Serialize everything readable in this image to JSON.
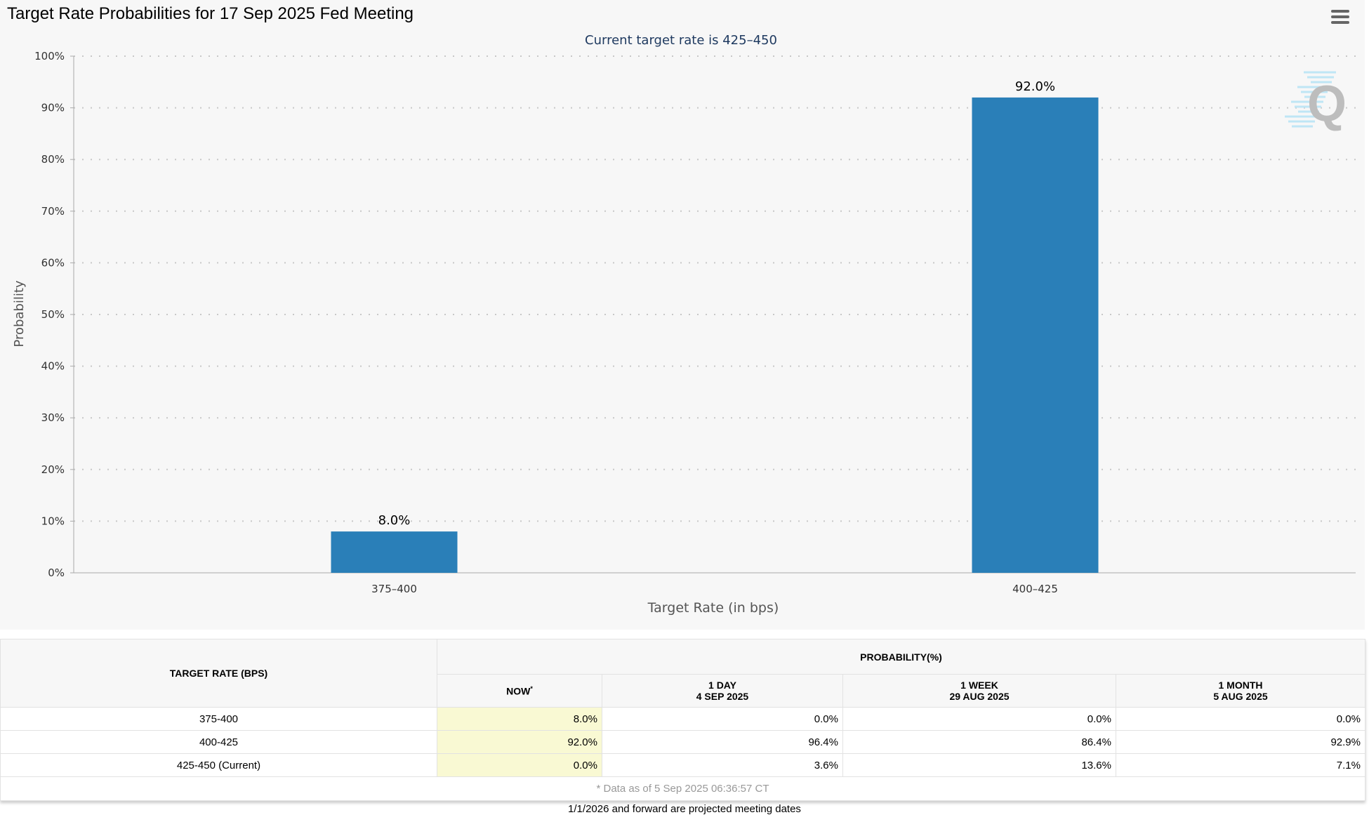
{
  "title": "Target Rate Probabilities for 17 Sep 2025 Fed Meeting",
  "menu_icon": "hamburger-menu-icon",
  "colors": {
    "bar": "#2a7fb8",
    "now_column": "#f9f9d3",
    "background": "#f7f7f7"
  },
  "chart_data": {
    "type": "bar",
    "subtitle": "Current target rate is 425–450",
    "categories": [
      "375–400",
      "400–425"
    ],
    "values": [
      8.0,
      92.0
    ],
    "data_labels": [
      "8.0%",
      "92.0%"
    ],
    "xlabel": "Target Rate (in bps)",
    "ylabel": "Probability",
    "ylim": [
      0,
      100
    ],
    "yticks": [
      "0%",
      "10%",
      "20%",
      "30%",
      "40%",
      "50%",
      "60%",
      "70%",
      "80%",
      "90%",
      "100%"
    ],
    "grid": true,
    "legend": "none"
  },
  "table": {
    "col_header": "TARGET RATE (BPS)",
    "group_header": "PROBABILITY(%)",
    "columns": [
      {
        "line1": "NOW",
        "line2": ""
      },
      {
        "line1": "1 DAY",
        "line2": "4 SEP 2025"
      },
      {
        "line1": "1 WEEK",
        "line2": "29 AUG 2025"
      },
      {
        "line1": "1 MONTH",
        "line2": "5 AUG 2025"
      }
    ],
    "now_marker": "*",
    "rows": [
      {
        "rate": "375-400",
        "values": [
          "8.0%",
          "0.0%",
          "0.0%",
          "0.0%"
        ]
      },
      {
        "rate": "400-425",
        "values": [
          "92.0%",
          "96.4%",
          "86.4%",
          "92.9%"
        ]
      },
      {
        "rate": "425-450 (Current)",
        "values": [
          "0.0%",
          "3.6%",
          "13.6%",
          "7.1%"
        ]
      }
    ],
    "footnote": "* Data as of 5 Sep 2025 06:36:57 CT"
  },
  "bottom_note": "1/1/2026 and forward are projected meeting dates"
}
